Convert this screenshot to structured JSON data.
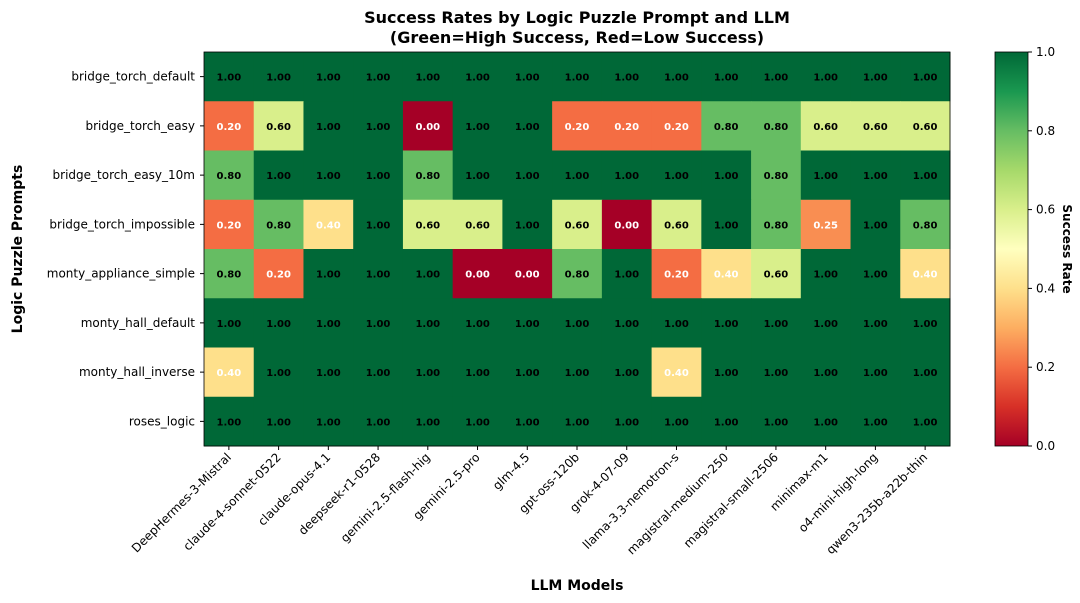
{
  "chart_data": {
    "type": "heatmap",
    "title": "Success Rates by Logic Puzzle Prompt and LLM",
    "subtitle": "(Green=High Success, Red=Low Success)",
    "xlabel": "LLM Models",
    "ylabel": "Logic Puzzle Prompts",
    "x_categories": [
      "DeepHermes-3-Mistral",
      "claude-4-sonnet-0522",
      "claude-opus-4.1",
      "deepseek-r1-0528",
      "gemini-2.5-flash-hig",
      "gemini-2.5-pro",
      "glm-4.5",
      "gpt-oss-120b",
      "grok-4-07-09",
      "llama-3.3-nemotron-s",
      "magistral-medium-250",
      "magistral-small-2506",
      "minimax-m1",
      "o4-mini-high-long",
      "qwen3-235b-a22b-thin"
    ],
    "y_categories": [
      "bridge_torch_default",
      "bridge_torch_easy",
      "bridge_torch_easy_10m",
      "bridge_torch_impossible",
      "monty_appliance_simple",
      "monty_hall_default",
      "monty_hall_inverse",
      "roses_logic"
    ],
    "values": [
      [
        1,
        1,
        1,
        1,
        1,
        1,
        1,
        1,
        1,
        1,
        1,
        1,
        1,
        1,
        1
      ],
      [
        0.2,
        0.6,
        1,
        1,
        0,
        1,
        1,
        0.2,
        0.2,
        0.2,
        0.8,
        0.8,
        0.6,
        0.6,
        0.6
      ],
      [
        0.8,
        1,
        1,
        1,
        0.8,
        1,
        1,
        1,
        1,
        1,
        1,
        0.8,
        1,
        1,
        1
      ],
      [
        0.2,
        0.8,
        0.4,
        1,
        0.6,
        0.6,
        1,
        0.6,
        0,
        0.6,
        1,
        0.8,
        0.25,
        1,
        0.8
      ],
      [
        0.8,
        0.2,
        1,
        1,
        1,
        0,
        0,
        0.8,
        1,
        0.2,
        0.4,
        0.6,
        1,
        1,
        0.4
      ],
      [
        1,
        1,
        1,
        1,
        1,
        1,
        1,
        1,
        1,
        1,
        1,
        1,
        1,
        1,
        1
      ],
      [
        0.4,
        1,
        1,
        1,
        1,
        1,
        1,
        1,
        1,
        0.4,
        1,
        1,
        1,
        1,
        1
      ],
      [
        1,
        1,
        1,
        1,
        1,
        1,
        1,
        1,
        1,
        1,
        1,
        1,
        1,
        1,
        1
      ]
    ],
    "value_format": "2 decimals",
    "colormap": "RdYlGn",
    "colorbar": {
      "label": "Success Rate",
      "range": [
        0,
        1
      ],
      "ticks": [
        "0.0",
        "0.2",
        "0.4",
        "0.6",
        "0.8",
        "1.0"
      ]
    },
    "grid": false
  }
}
